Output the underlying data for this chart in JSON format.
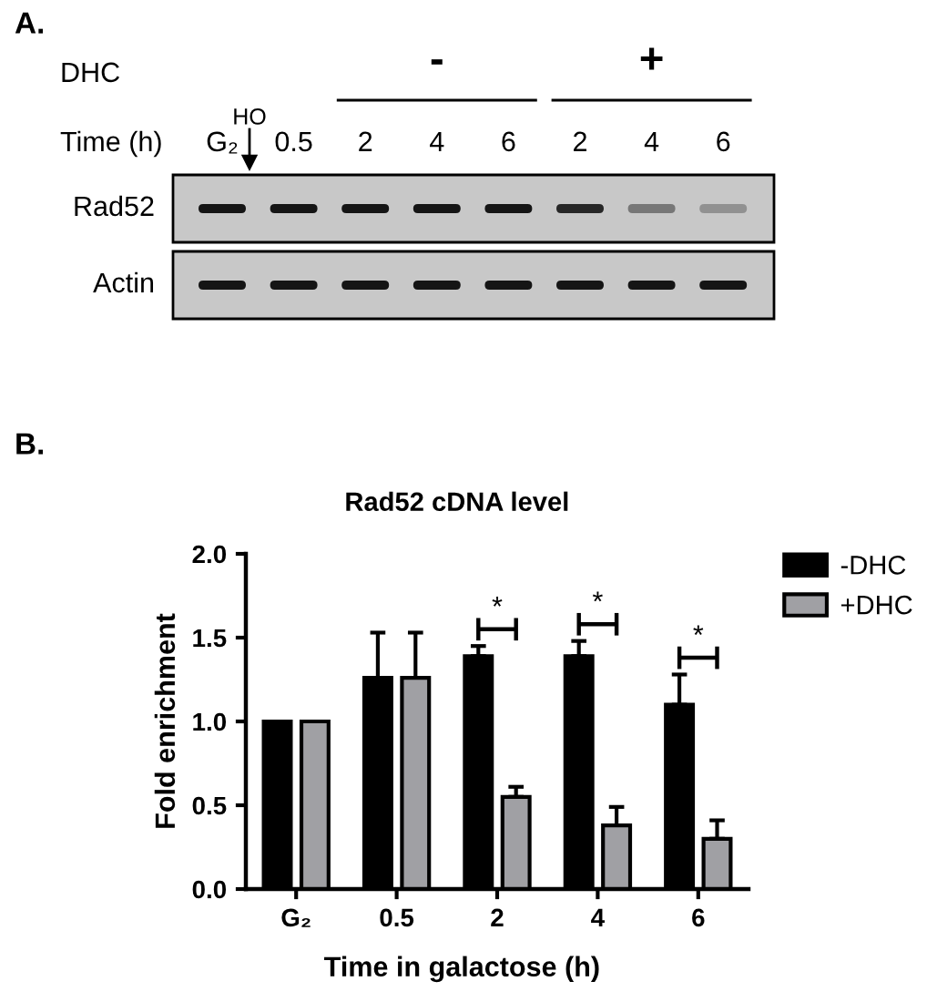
{
  "chart_data": [
    {
      "type": "other",
      "categories": [
        "G₂",
        "0.5",
        "2",
        "4",
        "6",
        "2",
        "4",
        "6"
      ],
      "y_categories": [
        "Rad52",
        "Actin"
      ],
      "annotations": [
        "A.",
        "DHC",
        "-",
        "+",
        "Time (h)",
        "HO"
      ]
    },
    {
      "type": "bar",
      "title": "Rad52 cDNA level",
      "xlabel": "Time in galactose (h)",
      "ylabel": "Fold enrichment",
      "categories": [
        "G₂",
        "0.5",
        "2",
        "4",
        "6"
      ],
      "series": [
        {
          "name": "-DHC",
          "color": "#000000",
          "values": [
            1.0,
            1.26,
            1.39,
            1.39,
            1.1
          ],
          "errors": [
            null,
            [
              1.26,
              1.53
            ],
            [
              1.39,
              1.45
            ],
            [
              1.39,
              1.48
            ],
            [
              1.1,
              1.28
            ]
          ]
        },
        {
          "name": "+DHC",
          "color": "#a0a0a4",
          "values": [
            1.0,
            1.26,
            0.55,
            0.38,
            0.3
          ],
          "errors": [
            null,
            [
              1.26,
              1.53
            ],
            [
              0.55,
              0.61
            ],
            [
              0.38,
              0.49
            ],
            [
              0.3,
              0.41
            ]
          ]
        }
      ],
      "ylim": [
        0,
        2
      ],
      "yticks": [
        {
          "value": 0,
          "label": "0.0"
        },
        {
          "value": 0.5,
          "label": "0.5"
        },
        {
          "value": 1,
          "label": "1.0"
        },
        {
          "value": 1.5,
          "label": "1.5"
        },
        {
          "value": 2,
          "label": "2.0"
        }
      ],
      "legend": "top right",
      "annotations": [
        "B.",
        "*",
        "*",
        "*"
      ]
    }
  ]
}
